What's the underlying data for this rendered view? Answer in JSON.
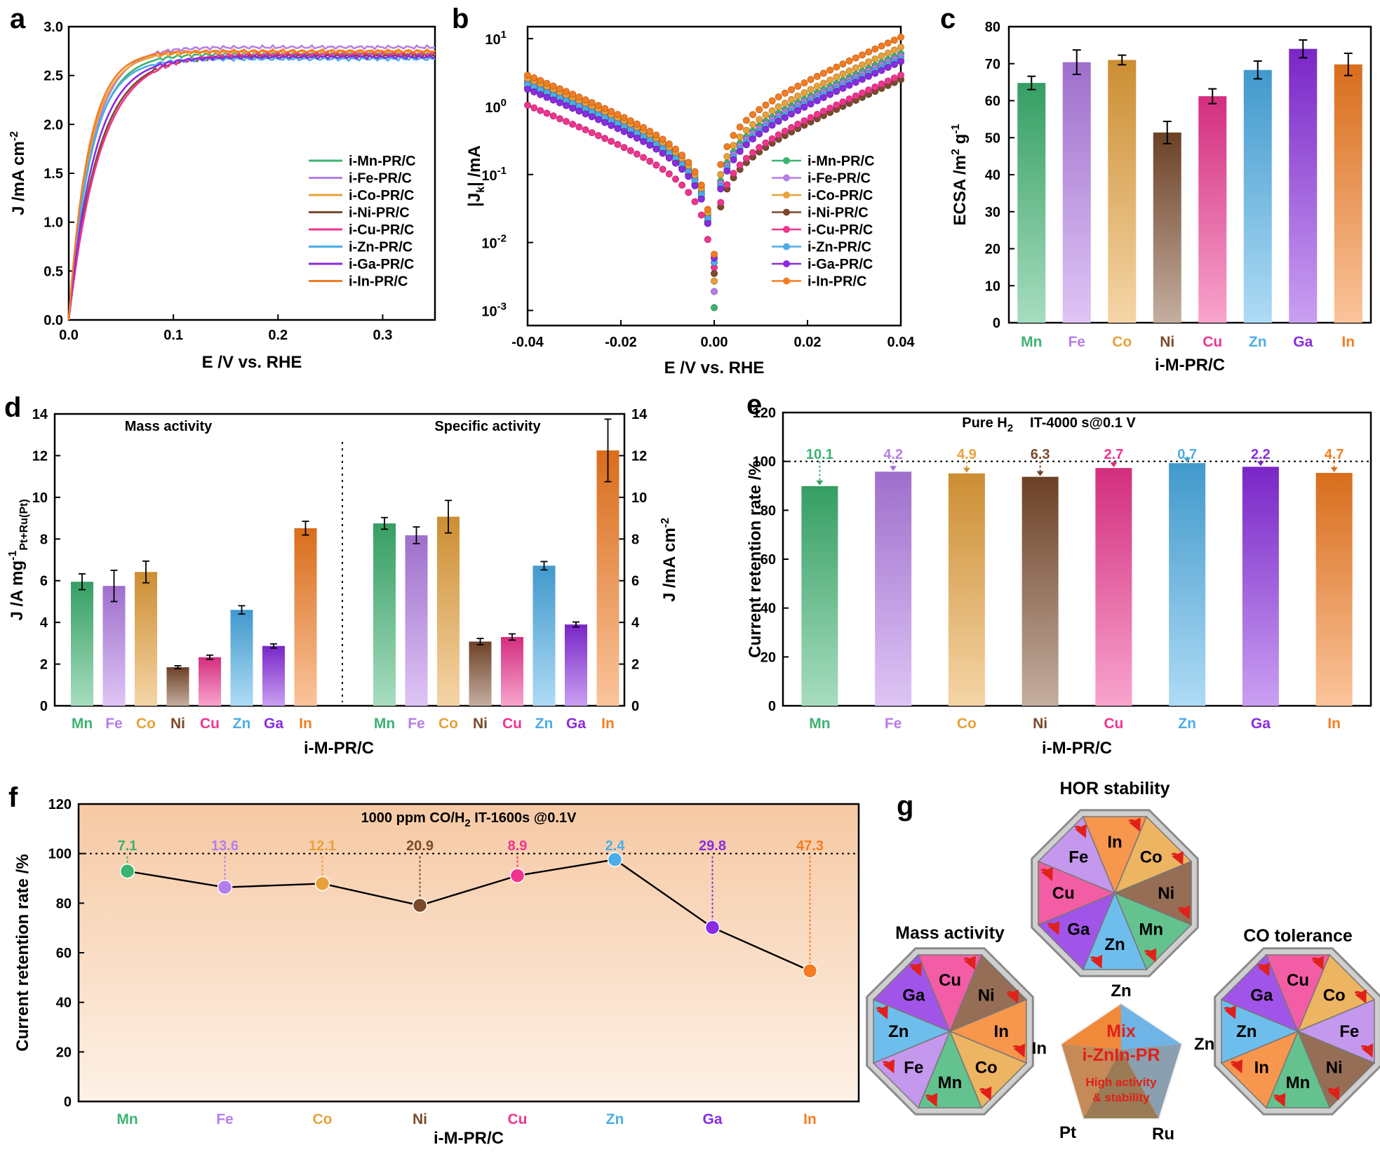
{
  "colors": {
    "Mn": "#3cb371",
    "Fe": "#b57ee8",
    "Co": "#e8a13a",
    "Ni": "#7b4a2b",
    "Cu": "#f0348f",
    "Zn": "#4aaee8",
    "Ga": "#8a2be2",
    "In": "#f57c20"
  },
  "categories": [
    "Mn",
    "Fe",
    "Co",
    "Ni",
    "Cu",
    "Zn",
    "Ga",
    "In"
  ],
  "xlabel_group": "i-M-PR/C",
  "panels": {
    "a": {
      "letter": "a",
      "xlabel": "E /V vs. RHE",
      "ylabel": "J /mA cm",
      "ylabel_sup": "-2",
      "legend": [
        "i-Mn-PR/C",
        "i-Fe-PR/C",
        "i-Co-PR/C",
        "i-Ni-PR/C",
        "i-Cu-PR/C",
        "i-Zn-PR/C",
        "i-Ga-PR/C",
        "i-In-PR/C"
      ],
      "xticks": [
        "0.0",
        "0.1",
        "0.2",
        "0.3"
      ],
      "yticks": [
        "0.0",
        "0.5",
        "1.0",
        "1.5",
        "2.0",
        "2.5",
        "3.0"
      ]
    },
    "b": {
      "letter": "b",
      "xlabel": "E /V vs. RHE",
      "ylabel_pre": "|J",
      "ylabel_sub": "k",
      "ylabel_post": "| /mA",
      "legend": [
        "i-Mn-PR/C",
        "i-Fe-PR/C",
        "i-Co-PR/C",
        "i-Ni-PR/C",
        "i-Cu-PR/C",
        "i-Zn-PR/C",
        "i-Ga-PR/C",
        "i-In-PR/C"
      ],
      "xticks": [
        "-0.04",
        "-0.02",
        "0.00",
        "0.02",
        "0.04"
      ],
      "yticks_base": "10",
      "yticks_exp": [
        "-3",
        "-2",
        "-1",
        "0",
        "1"
      ]
    },
    "c": {
      "letter": "c",
      "ylabel": "ECSA /m",
      "ylabel_sup1": "2",
      "ylabel_mid": " g",
      "ylabel_sup2": "-1",
      "yticks": [
        "0",
        "10",
        "20",
        "30",
        "40",
        "50",
        "60",
        "70",
        "80"
      ]
    },
    "d": {
      "letter": "d",
      "left_title": "Mass activity",
      "right_title": "Specific activity",
      "ylabel_left": "J /A mg",
      "ylabel_left_sup": "-1",
      "ylabel_left_sub": "Pt+Ru(Pt)",
      "ylabel_right": "J /mA cm",
      "ylabel_right_sup": "-2",
      "yticks": [
        "0",
        "2",
        "4",
        "6",
        "8",
        "10",
        "12",
        "14"
      ]
    },
    "e": {
      "letter": "e",
      "annotation_pre": "Pure H",
      "annotation_sub": "2",
      "annotation_post": "IT-4000 s@0.1 V",
      "ylabel": "Current retention rate /%",
      "yticks": [
        "0",
        "20",
        "40",
        "60",
        "80",
        "100",
        "120"
      ],
      "loss_labels": [
        "10.1",
        "4.2",
        "4.9",
        "6.3",
        "2.7",
        "0.7",
        "2.2",
        "4.7"
      ]
    },
    "f": {
      "letter": "f",
      "annotation_pre": "1000 ppm CO/H",
      "annotation_sub": "2",
      "annotation_post": " IT-1600s @0.1V",
      "ylabel": "Current retention rate /%",
      "yticks": [
        "0",
        "20",
        "40",
        "60",
        "80",
        "100",
        "120"
      ],
      "loss_labels": [
        "7.1",
        "13.6",
        "12.1",
        "20.9",
        "8.9",
        "2.4",
        "29.8",
        "47.3"
      ]
    },
    "g": {
      "letter": "g",
      "wheels": [
        {
          "title": "HOR stability",
          "order": [
            "In",
            "Co",
            "Ni",
            "Mn",
            "Zn",
            "Ga",
            "Cu",
            "Fe"
          ]
        },
        {
          "title": "Mass activity",
          "order": [
            "Cu",
            "Ni",
            "In",
            "Co",
            "Mn",
            "Fe",
            "Zn",
            "Ga"
          ]
        },
        {
          "title": "CO tolerance",
          "order": [
            "Cu",
            "Co",
            "Fe",
            "Ni",
            "Mn",
            "In",
            "Zn",
            "Ga"
          ]
        }
      ],
      "pentagon": {
        "top": "Zn",
        "left": "In",
        "right": "Zn",
        "bottom_left": "Pt",
        "bottom_right": "Ru",
        "mix_line1": "Mix",
        "mix_line2": "i-ZnIn-PR",
        "note_line1": "High activity",
        "note_line2": "& stability"
      }
    }
  },
  "chart_data": [
    {
      "panel": "a",
      "type": "line",
      "title": "",
      "xlabel": "E /V vs. RHE",
      "ylabel": "J /mA cm-2",
      "xlim": [
        0,
        0.35
      ],
      "ylim": [
        0,
        3.0
      ],
      "series": [
        {
          "name": "i-Mn-PR/C",
          "plateau": 2.72,
          "knee": 0.022
        },
        {
          "name": "i-Fe-PR/C",
          "plateau": 2.79,
          "knee": 0.022
        },
        {
          "name": "i-Co-PR/C",
          "plateau": 2.74,
          "knee": 0.02
        },
        {
          "name": "i-Ni-PR/C",
          "plateau": 2.7,
          "knee": 0.028
        },
        {
          "name": "i-Cu-PR/C",
          "plateau": 2.72,
          "knee": 0.03
        },
        {
          "name": "i-Zn-PR/C",
          "plateau": 2.67,
          "knee": 0.021
        },
        {
          "name": "i-Ga-PR/C",
          "plateau": 2.69,
          "knee": 0.025
        },
        {
          "name": "i-In-PR/C",
          "plateau": 2.75,
          "knee": 0.019
        }
      ]
    },
    {
      "panel": "b",
      "type": "scatter",
      "title": "",
      "xlabel": "E /V vs. RHE",
      "ylabel": "|Jk| /mA",
      "xlim": [
        -0.04,
        0.04
      ],
      "ylim": [
        0.0006,
        15
      ],
      "yscale": "log",
      "series": [
        {
          "name": "i-Mn-PR/C",
          "j_neg": 2.4,
          "j_pos": 6.0
        },
        {
          "name": "i-Fe-PR/C",
          "j_neg": 2.2,
          "j_pos": 5.5
        },
        {
          "name": "i-Co-PR/C",
          "j_neg": 2.6,
          "j_pos": 7.5
        },
        {
          "name": "i-Ni-PR/C",
          "j_neg": 1.9,
          "j_pos": 2.5
        },
        {
          "name": "i-Cu-PR/C",
          "j_neg": 1.05,
          "j_pos": 2.9
        },
        {
          "name": "i-Zn-PR/C",
          "j_neg": 2.1,
          "j_pos": 5.0
        },
        {
          "name": "i-Ga-PR/C",
          "j_neg": 1.8,
          "j_pos": 4.6
        },
        {
          "name": "i-In-PR/C",
          "j_neg": 2.9,
          "j_pos": 10.5
        }
      ]
    },
    {
      "panel": "c",
      "type": "bar",
      "title": "",
      "xlabel": "i-M-PR/C",
      "ylabel": "ECSA /m2 g-1",
      "ylim": [
        0,
        80
      ],
      "categories": [
        "Mn",
        "Fe",
        "Co",
        "Ni",
        "Cu",
        "Zn",
        "Ga",
        "In"
      ],
      "values": [
        64.8,
        70.4,
        71.0,
        51.4,
        61.2,
        68.3,
        74.0,
        69.8
      ],
      "errors": [
        1.8,
        3.3,
        1.3,
        3.0,
        2.0,
        2.4,
        2.4,
        3.0
      ]
    },
    {
      "panel": "d-mass",
      "type": "bar",
      "title": "Mass activity",
      "xlabel": "i-M-PR/C",
      "ylabel": "J /A mg-1 Pt+Ru(Pt)",
      "ylim": [
        0,
        14
      ],
      "categories": [
        "Mn",
        "Fe",
        "Co",
        "Ni",
        "Cu",
        "Zn",
        "Ga",
        "In"
      ],
      "values": [
        5.95,
        5.75,
        6.42,
        1.85,
        2.33,
        4.6,
        2.87,
        8.52
      ],
      "errors": [
        0.38,
        0.75,
        0.52,
        0.07,
        0.1,
        0.2,
        0.1,
        0.33
      ]
    },
    {
      "panel": "d-specific",
      "type": "bar",
      "title": "Specific activity",
      "xlabel": "i-M-PR/C",
      "ylabel": "J /mA cm-2",
      "ylim": [
        0,
        14
      ],
      "categories": [
        "Mn",
        "Fe",
        "Co",
        "Ni",
        "Cu",
        "Zn",
        "Ga",
        "In"
      ],
      "values": [
        8.75,
        8.18,
        9.07,
        3.08,
        3.3,
        6.72,
        3.9,
        12.25
      ],
      "errors": [
        0.28,
        0.4,
        0.78,
        0.15,
        0.15,
        0.2,
        0.12,
        1.5
      ]
    },
    {
      "panel": "e",
      "type": "bar",
      "title": "Pure H2 IT-4000 s@0.1 V",
      "xlabel": "i-M-PR/C",
      "ylabel": "Current retention rate /%",
      "ylim": [
        0,
        120
      ],
      "categories": [
        "Mn",
        "Fe",
        "Co",
        "Ni",
        "Cu",
        "Zn",
        "Ga",
        "In"
      ],
      "values": [
        89.9,
        95.8,
        95.1,
        93.7,
        97.3,
        99.3,
        97.8,
        95.3
      ],
      "reference_line": 100
    },
    {
      "panel": "f",
      "type": "line",
      "title": "1000 ppm CO/H2 IT-1600s @0.1V",
      "xlabel": "i-M-PR/C",
      "ylabel": "Current retention rate /%",
      "ylim": [
        0,
        120
      ],
      "categories": [
        "Mn",
        "Fe",
        "Co",
        "Ni",
        "Cu",
        "Zn",
        "Ga",
        "In"
      ],
      "values": [
        92.9,
        86.4,
        87.9,
        79.1,
        91.1,
        97.6,
        70.2,
        52.7
      ],
      "reference_line": 100
    }
  ]
}
